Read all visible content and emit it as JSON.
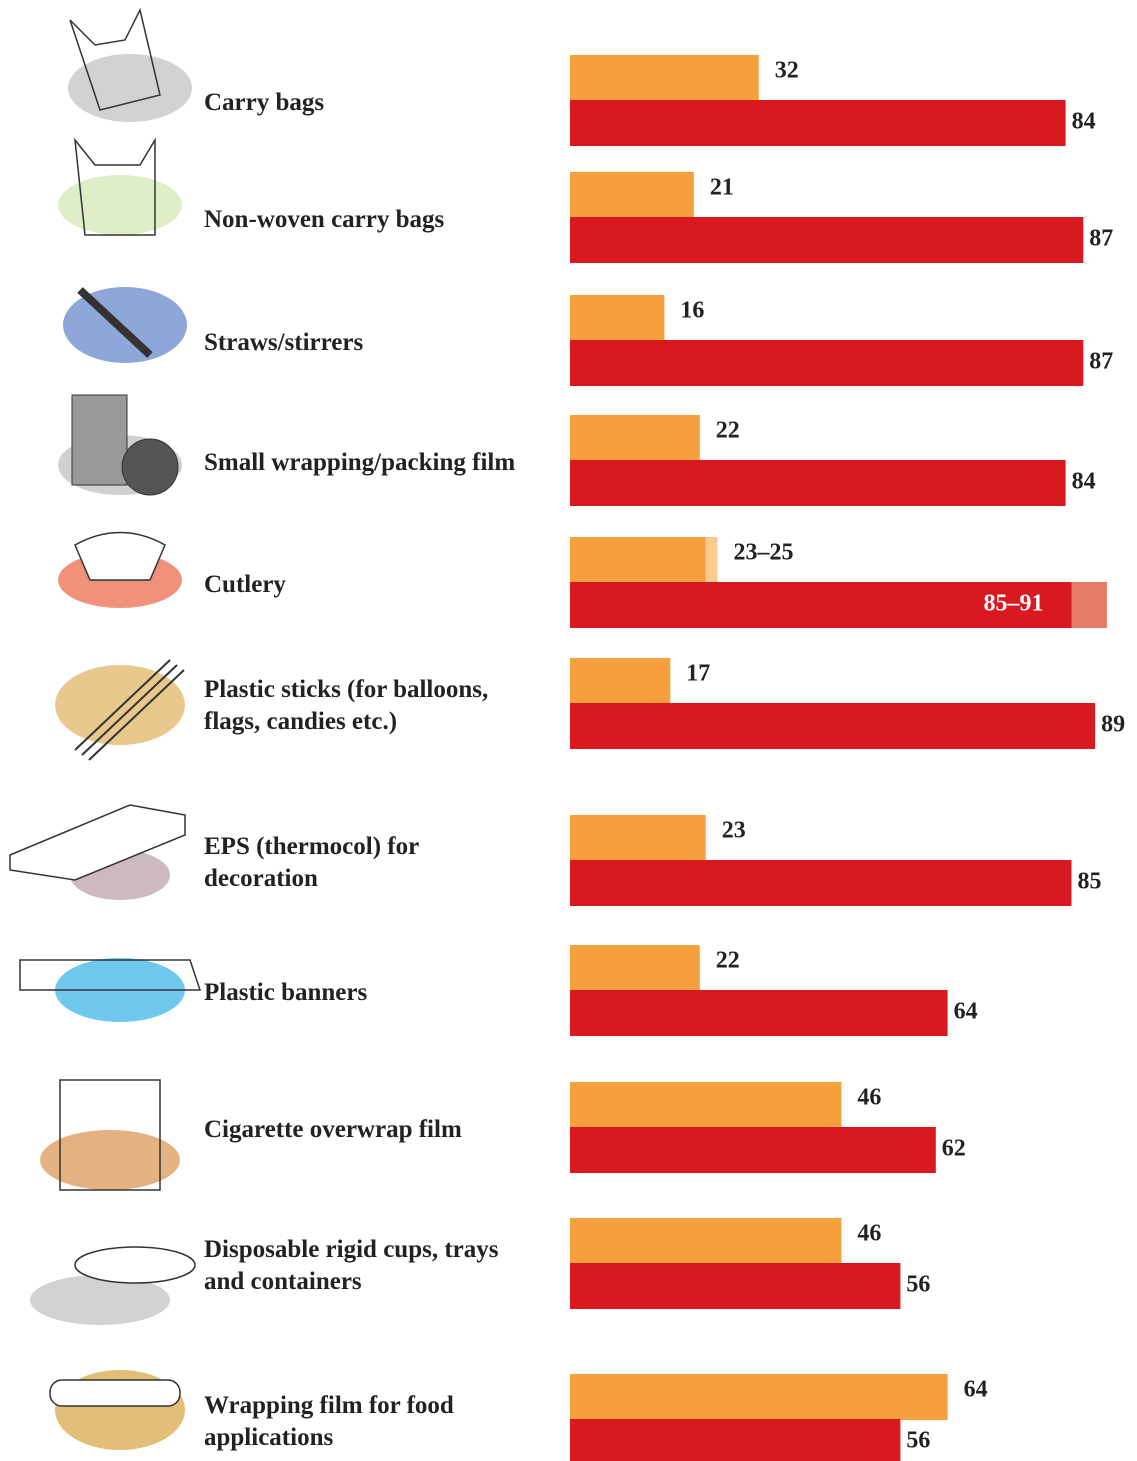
{
  "chart_data": {
    "type": "bar",
    "categories": [
      "Carry bags",
      "Non-woven carry bags",
      "Straws/stirrers",
      "Small wrapping/packing film",
      "Cutlery",
      "Plastic sticks (for balloons,\nflags, candies etc.)",
      "EPS (thermocol) for\ndecoration",
      "Plastic banners",
      "Cigarette overwrap film",
      "Disposable rigid cups, trays\nand containers",
      "Wrapping film for food\napplications"
    ],
    "series": [
      {
        "color": "#f5a03c",
        "range_color": "#fcc98f",
        "values": [
          32,
          21,
          16,
          22,
          23,
          17,
          23,
          22,
          46,
          46,
          64
        ],
        "range_max": [
          null,
          null,
          null,
          null,
          25,
          null,
          null,
          null,
          null,
          null,
          null
        ],
        "value_labels": [
          null,
          null,
          null,
          null,
          "23–25",
          null,
          null,
          null,
          null,
          null,
          null
        ]
      },
      {
        "color": "#d81920",
        "range_color": "#e67b66",
        "values": [
          84,
          87,
          87,
          84,
          85,
          89,
          85,
          64,
          62,
          56,
          56
        ],
        "range_max": [
          null,
          null,
          null,
          null,
          91,
          null,
          null,
          null,
          null,
          null,
          null
        ],
        "value_labels": [
          null,
          null,
          null,
          null,
          "85–91",
          null,
          null,
          null,
          null,
          null,
          null
        ]
      }
    ],
    "xlim": [
      0,
      100
    ]
  }
}
